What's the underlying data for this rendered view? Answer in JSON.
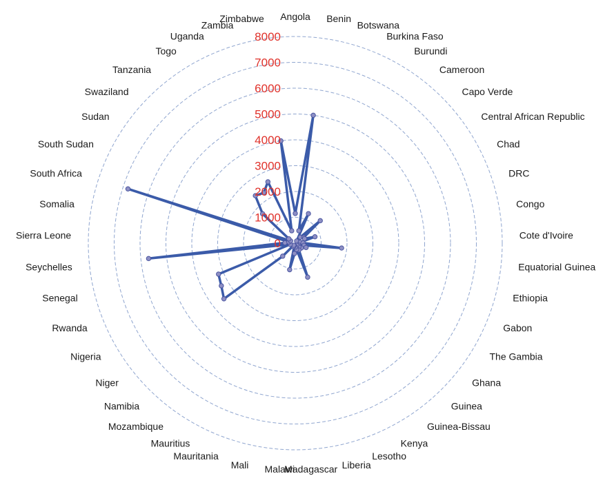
{
  "chart_data": {
    "type": "radar",
    "categories": [
      "Angola",
      "Benin",
      "Botswana",
      "Burkina Faso",
      "Burundi",
      "Cameroon",
      "Capo Verde",
      "Central African Republic",
      "Chad",
      "DRC",
      "Congo",
      "Cote d'Ivoire",
      "Equatorial Guinea",
      "Ethiopia",
      "Gabon",
      "The Gambia",
      "Ghana",
      "Guinea",
      "Guinea-Bissau",
      "Kenya",
      "Lesotho",
      "Liberia",
      "Madagascar",
      "Malawi",
      "Mali",
      "Mauritania",
      "Mauritius",
      "Mozambique",
      "Namibia",
      "Niger",
      "Nigeria",
      "Rwanda",
      "Senegal",
      "Seychelles",
      "Sierra Leone",
      "Somalia",
      "South Africa",
      "South Sudan",
      "Sudan",
      "Swaziland",
      "Tanzania",
      "Togo",
      "Uganda",
      "Zambia",
      "Zimbabwe"
    ],
    "series": [
      {
        "values": [
          1150,
          5000,
          500,
          1250,
          100,
          300,
          1300,
          400,
          400,
          800,
          200,
          300,
          1800,
          350,
          450,
          150,
          300,
          200,
          100,
          300,
          1400,
          250,
          150,
          400,
          1050,
          100,
          150,
          100,
          700,
          3500,
          3300,
          3200,
          200,
          5700,
          400,
          250,
          6800,
          200,
          300,
          1700,
          2400,
          2300,
          2600,
          500,
          4000
        ]
      }
    ],
    "rlim": [
      0,
      8000
    ],
    "ticks": [
      "0",
      "1000",
      "2000",
      "3000",
      "4000",
      "5000",
      "6000",
      "7000",
      "8000"
    ],
    "colors": {
      "series": "#3b5ba9",
      "marker_fill": "#8d8fc4",
      "grid": "#8fa5cf",
      "tick_labels": "#e0322b",
      "labels": "#1a1a1a"
    },
    "grid": true,
    "legend": false
  }
}
